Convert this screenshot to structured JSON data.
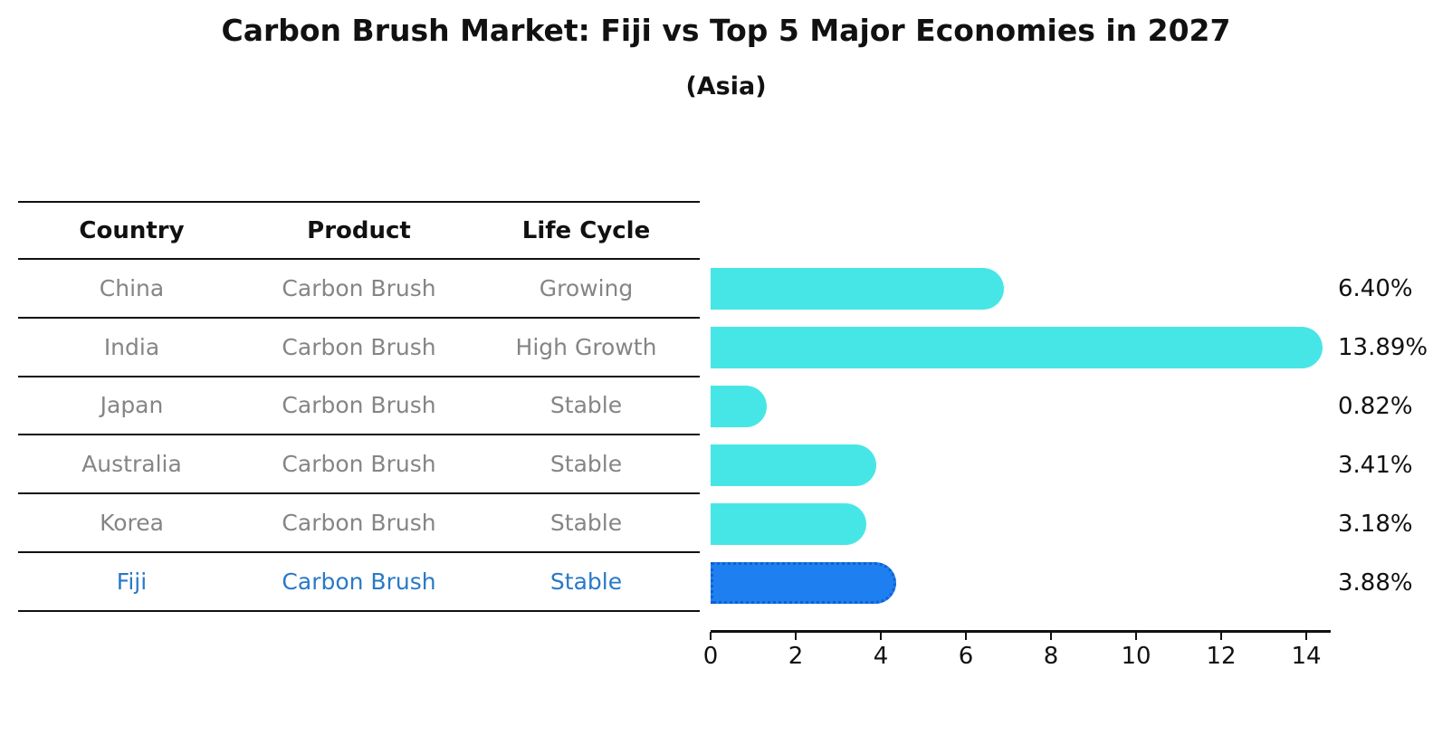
{
  "title": "Carbon Brush Market: Fiji vs Top 5 Major Economies in 2027",
  "subtitle": "(Asia)",
  "table": {
    "headers": [
      "Country",
      "Product",
      "Life Cycle"
    ],
    "rows": [
      {
        "country": "China",
        "product": "Carbon Brush",
        "life_cycle": "Growing",
        "highlight": false
      },
      {
        "country": "India",
        "product": "Carbon Brush",
        "life_cycle": "High Growth",
        "highlight": false
      },
      {
        "country": "Japan",
        "product": "Carbon Brush",
        "life_cycle": "Stable",
        "highlight": false
      },
      {
        "country": "Australia",
        "product": "Carbon Brush",
        "life_cycle": "Stable",
        "highlight": false
      },
      {
        "country": "Korea",
        "product": "Carbon Brush",
        "life_cycle": "Stable",
        "highlight": false
      },
      {
        "country": "Fiji",
        "product": "Carbon Brush",
        "life_cycle": "Stable",
        "highlight": true
      }
    ]
  },
  "chart_data": {
    "type": "bar",
    "orientation": "horizontal",
    "title": "Carbon Brush Market: Fiji vs Top 5 Major Economies in 2027",
    "subtitle": "(Asia)",
    "categories": [
      "China",
      "India",
      "Japan",
      "Australia",
      "Korea",
      "Fiji"
    ],
    "values": [
      6.4,
      13.89,
      0.82,
      3.41,
      3.18,
      3.88
    ],
    "value_labels": [
      "6.40%",
      "13.89%",
      "0.82%",
      "3.41%",
      "3.18%",
      "3.88%"
    ],
    "x_ticks": [
      "0",
      "2",
      "4",
      "6",
      "8",
      "10",
      "12",
      "14"
    ],
    "xlim": [
      0,
      14.58
    ],
    "grid": false,
    "legend": false,
    "bar_color": "#47e6e6",
    "highlight_bar_color": "#1e7ff0",
    "highlight_bar_border": "#1260cf",
    "highlight_index": 5
  },
  "colors": {
    "bar_cyan": "#47e6e6",
    "bar_blue": "#1e7ff0",
    "bar_blue_border": "#1260cf",
    "row_text_gray": "#858585",
    "highlight_text_blue": "#2979c8",
    "line_black": "#111111"
  }
}
